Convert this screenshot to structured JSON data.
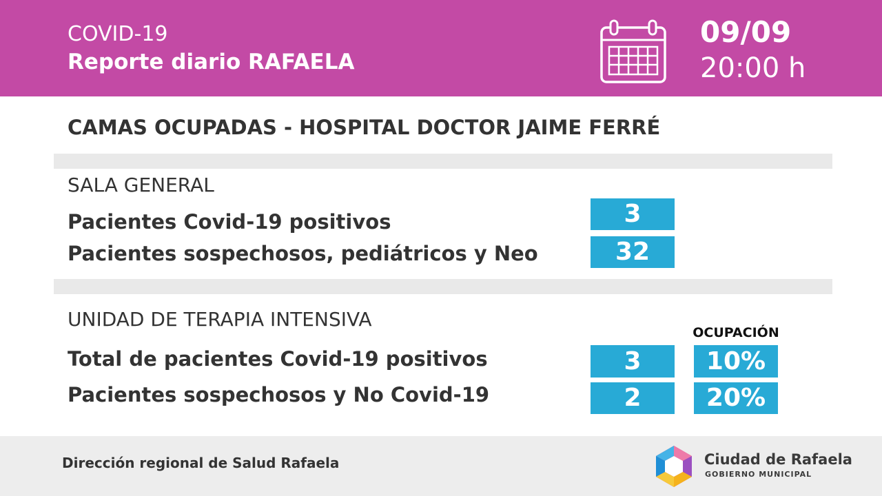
{
  "header": {
    "line1": "COVID-19",
    "line2": "Reporte diario RAFAELA",
    "date": "09/09",
    "time": "20:00 h",
    "icon": "calendar-icon",
    "background_color": "#c34aa5"
  },
  "main_title": "CAMAS OCUPADAS - HOSPITAL DOCTOR JAIME FERRÉ",
  "sala_general": {
    "title": "SALA GENERAL",
    "rows": [
      {
        "label": "Pacientes Covid-19 positivos",
        "value": "3"
      },
      {
        "label": "Pacientes sospechosos, pediátricos y Neo",
        "value": "32"
      }
    ]
  },
  "uti": {
    "title": "UNIDAD DE TERAPIA INTENSIVA",
    "occupancy_header": "OCUPACIÓN",
    "rows": [
      {
        "label": "Total de pacientes Covid-19 positivos",
        "value": "3",
        "occupancy": "10%"
      },
      {
        "label": "Pacientes sospechosos y No Covid-19",
        "value": "2",
        "occupancy": "20%"
      }
    ]
  },
  "footer": {
    "text": "Dirección regional de Salud Rafaela",
    "logo_name": "Ciudad de Rafaela",
    "logo_sub": "GOBIERNO MUNICIPAL",
    "logo_icon": "ciudad-de-rafaela-logo-icon"
  },
  "colors": {
    "accent": "#c34aa5",
    "value_box": "#28aad6",
    "divider": "#e9e9e9",
    "footer_bg": "#ededed"
  }
}
